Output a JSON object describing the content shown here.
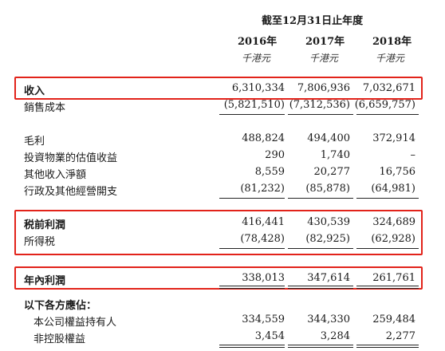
{
  "header": {
    "period_label": "截至12月31日止年度",
    "years": [
      "2016年",
      "2017年",
      "2018年"
    ],
    "unit": "千港元"
  },
  "rows": [
    {
      "label": "收入",
      "values": [
        "6,310,334",
        "7,806,936",
        "7,032,671"
      ]
    },
    {
      "label": "銷售成本",
      "values": [
        "(5,821,510)",
        "(7,312,536)",
        "(6,659,757)"
      ]
    },
    {
      "label": "毛利",
      "values": [
        "488,824",
        "494,400",
        "372,914"
      ]
    },
    {
      "label": "投資物業的估值收益",
      "values": [
        "290",
        "1,740",
        "–"
      ]
    },
    {
      "label": "其他收入淨額",
      "values": [
        "8,559",
        "20,277",
        "16,756"
      ]
    },
    {
      "label": "行政及其他經營開支",
      "values": [
        "(81,232)",
        "(85,878)",
        "(64,981)"
      ]
    },
    {
      "label": "税前利潤",
      "values": [
        "416,441",
        "430,539",
        "324,689"
      ]
    },
    {
      "label": "所得税",
      "values": [
        "(78,428)",
        "(82,925)",
        "(62,928)"
      ]
    },
    {
      "label": "年內利潤",
      "values": [
        "338,013",
        "347,614",
        "261,761"
      ]
    },
    {
      "label": "以下各方應佔：",
      "values": []
    },
    {
      "label": "本公司權益持有人",
      "values": [
        "334,559",
        "344,330",
        "259,484"
      ]
    },
    {
      "label": "非控股權益",
      "values": [
        "3,454",
        "3,284",
        "2,277"
      ]
    }
  ],
  "colors": {
    "highlight_box": "#e2231a"
  }
}
